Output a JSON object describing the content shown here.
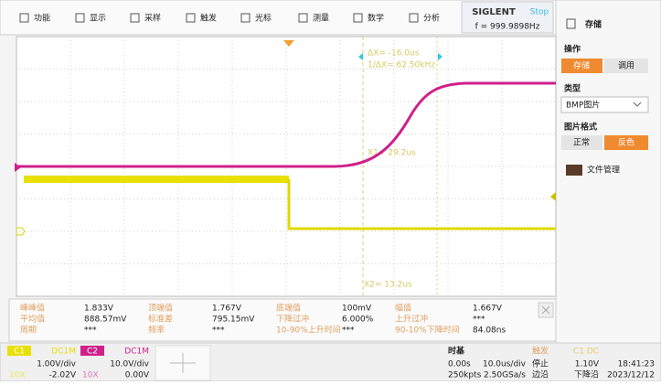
{
  "menu": [
    "功能",
    "显示",
    "采样",
    "触发",
    "光标",
    "测量",
    "数学",
    "分析"
  ],
  "header": {
    "brand": "SIGLENT",
    "status": "Stop",
    "frequency": "f = 999.9898Hz"
  },
  "cursors": {
    "delta_x": "ΔX= -16.0us",
    "inverse_delta_x": "1/ΔX= 62.50kHz",
    "x1": "X1= 29.2us",
    "x2": "X2= 13.2us"
  },
  "side_panel": {
    "title": "存储",
    "operation": {
      "label": "操作",
      "buttons": [
        "存储",
        "调用"
      ]
    },
    "type": {
      "label": "类型",
      "value": "BMP图片"
    },
    "format": {
      "label": "图片格式",
      "buttons": [
        "正常",
        "反色"
      ]
    },
    "file_manager": "文件管理"
  },
  "measurements": [
    [
      {
        "label": "峰峰值",
        "value": "1.833V"
      },
      {
        "label": "顶端值",
        "value": "1.767V"
      },
      {
        "label": "底端值",
        "value": "100mV"
      },
      {
        "label": "幅值",
        "value": "1.667V"
      }
    ],
    [
      {
        "label": "平均值",
        "value": "888.57mV"
      },
      {
        "label": "标准差",
        "value": "795.15mV"
      },
      {
        "label": "下降过冲",
        "value": "6.000%"
      },
      {
        "label": "上升过冲",
        "value": "***"
      }
    ],
    [
      {
        "label": "周期",
        "value": "***"
      },
      {
        "label": "频率",
        "value": "***"
      },
      {
        "label": "10-90%上升时间",
        "value": "***"
      },
      {
        "label": "90-10%下降时间",
        "value": "84.08ns"
      }
    ]
  ],
  "channels": [
    {
      "name": "C1",
      "coupling": "DC1M",
      "scale": "1.00V/div",
      "offset": "-2.02V",
      "probe": "10X"
    },
    {
      "name": "C2",
      "coupling": "DC1M",
      "scale": "10.0V/div",
      "offset": "0.00V",
      "probe": "10X"
    }
  ],
  "timebase": {
    "label": "时基",
    "delay": "0.00s",
    "scale": "10.0us/div",
    "memory": "250kpts",
    "sample_rate": "2.50GSa/s"
  },
  "trigger": {
    "label": "触发",
    "source": "C1 DC",
    "state": "停止",
    "type": "边沿",
    "level": "1.10V",
    "slope": "下降沿"
  },
  "clock": {
    "time": "18:41:23",
    "date": "2023/12/12"
  }
}
